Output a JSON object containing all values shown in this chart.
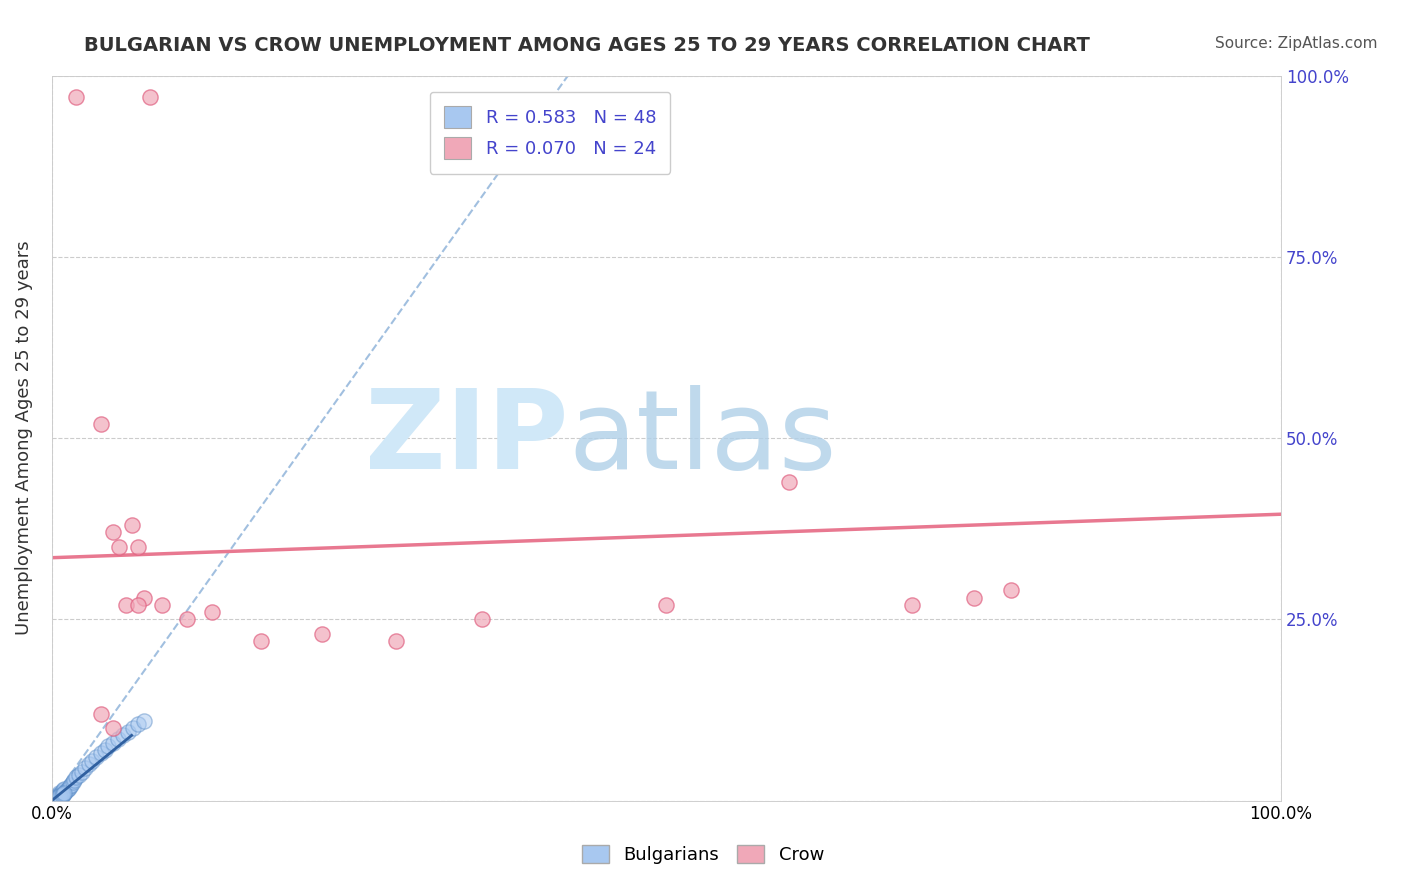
{
  "title": "BULGARIAN VS CROW UNEMPLOYMENT AMONG AGES 25 TO 29 YEARS CORRELATION CHART",
  "source": "Source: ZipAtlas.com",
  "ylabel": "Unemployment Among Ages 25 to 29 years",
  "xlim": [
    0,
    1
  ],
  "ylim": [
    0,
    1
  ],
  "yticks_left": [
    0,
    0.25,
    0.5,
    0.75,
    1.0
  ],
  "yticks_right": [
    0.25,
    0.5,
    0.75,
    1.0
  ],
  "yticklabels_left": [
    "",
    "",
    "",
    "",
    ""
  ],
  "yticklabels_right": [
    "25.0%",
    "50.0%",
    "75.0%",
    "100.0%"
  ],
  "xtick_left_label": "0.0%",
  "xtick_right_label": "100.0%",
  "bg_color": "#ffffff",
  "grid_color": "#cccccc",
  "watermark_zip": "ZIP",
  "watermark_atlas": "atlas",
  "watermark_color_zip": "#d0e8f8",
  "watermark_color_atlas": "#b0d0e8",
  "legend_R1": "0.583",
  "legend_N1": "48",
  "legend_R2": "0.070",
  "legend_N2": "24",
  "blue_color": "#a8c8f0",
  "pink_color": "#f0a8b8",
  "blue_line_color": "#8ab0d8",
  "pink_line_color": "#e87890",
  "blue_scatter_x": [
    0.002,
    0.003,
    0.004,
    0.005,
    0.005,
    0.006,
    0.006,
    0.007,
    0.007,
    0.008,
    0.008,
    0.009,
    0.009,
    0.01,
    0.01,
    0.011,
    0.012,
    0.013,
    0.014,
    0.015,
    0.016,
    0.017,
    0.018,
    0.02,
    0.022,
    0.025,
    0.027,
    0.03,
    0.033,
    0.036,
    0.04,
    0.043,
    0.046,
    0.05,
    0.054,
    0.058,
    0.062,
    0.066,
    0.07,
    0.075,
    0.003,
    0.004,
    0.005,
    0.006,
    0.007,
    0.008,
    0.009,
    0.01
  ],
  "blue_scatter_y": [
    0.003,
    0.005,
    0.007,
    0.004,
    0.008,
    0.006,
    0.01,
    0.005,
    0.009,
    0.007,
    0.012,
    0.008,
    0.014,
    0.01,
    0.016,
    0.012,
    0.014,
    0.016,
    0.018,
    0.02,
    0.022,
    0.025,
    0.028,
    0.032,
    0.036,
    0.04,
    0.045,
    0.05,
    0.055,
    0.06,
    0.065,
    0.07,
    0.075,
    0.08,
    0.085,
    0.09,
    0.095,
    0.1,
    0.105,
    0.11,
    0.003,
    0.004,
    0.005,
    0.006,
    0.007,
    0.008,
    0.009,
    0.01
  ],
  "pink_scatter_x": [
    0.02,
    0.08,
    0.04,
    0.05,
    0.055,
    0.065,
    0.07,
    0.075,
    0.09,
    0.11,
    0.13,
    0.17,
    0.22,
    0.28,
    0.35,
    0.5,
    0.6,
    0.7,
    0.75,
    0.78,
    0.04,
    0.05,
    0.06,
    0.07
  ],
  "pink_scatter_y": [
    0.97,
    0.97,
    0.52,
    0.37,
    0.35,
    0.38,
    0.35,
    0.28,
    0.27,
    0.25,
    0.26,
    0.22,
    0.23,
    0.22,
    0.25,
    0.27,
    0.44,
    0.27,
    0.28,
    0.29,
    0.12,
    0.1,
    0.27,
    0.27
  ],
  "blue_trend_x": [
    0.0,
    0.42
  ],
  "blue_trend_y": [
    0.0,
    1.0
  ],
  "pink_trend_x": [
    0.0,
    1.0
  ],
  "pink_trend_y": [
    0.335,
    0.395
  ],
  "tick_color": "#4444cc",
  "title_color": "#333333"
}
